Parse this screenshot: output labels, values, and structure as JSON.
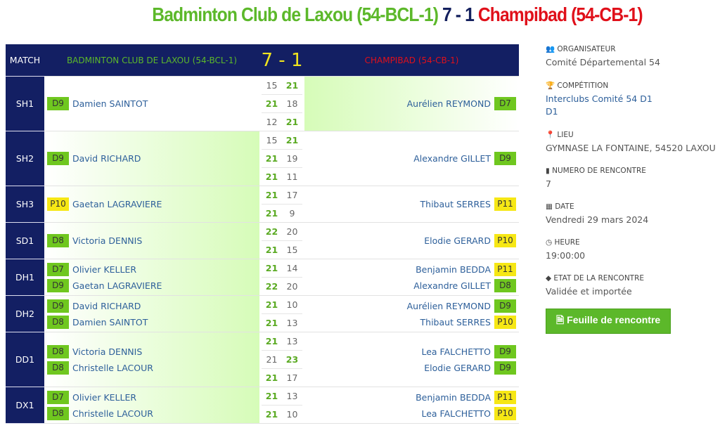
{
  "title": {
    "home": "Badminton Club de Laxou (54-BCL-1)",
    "score": "7 - 1",
    "away": "Champibad (54-CB-1)"
  },
  "table": {
    "match_header": "MATCH",
    "home_header": "BADMINTON CLUB DE LAXOU (54-BCL-1)",
    "score_header": "7 - 1",
    "away_header": "CHAMPIBAD (54-CB-1)",
    "rows": [
      {
        "match": "SH1",
        "winner": "away",
        "home": [
          {
            "rank": "D9",
            "name": "Damien SAINTOT"
          }
        ],
        "away": [
          {
            "rank": "D7",
            "name": "Aurélien REYMOND"
          }
        ],
        "sets": [
          [
            15,
            21
          ],
          [
            21,
            18
          ],
          [
            12,
            21
          ]
        ]
      },
      {
        "match": "SH2",
        "winner": "home",
        "home": [
          {
            "rank": "D9",
            "name": "David RICHARD"
          }
        ],
        "away": [
          {
            "rank": "D9",
            "name": "Alexandre GILLET"
          }
        ],
        "sets": [
          [
            15,
            21
          ],
          [
            21,
            19
          ],
          [
            21,
            11
          ]
        ]
      },
      {
        "match": "SH3",
        "winner": "home",
        "home": [
          {
            "rank": "P10",
            "name": "Gaetan LAGRAVIERE"
          }
        ],
        "away": [
          {
            "rank": "P11",
            "name": "Thibaut SERRES"
          }
        ],
        "sets": [
          [
            21,
            17
          ],
          [
            21,
            9
          ]
        ]
      },
      {
        "match": "SD1",
        "winner": "home",
        "home": [
          {
            "rank": "D8",
            "name": "Victoria DENNIS"
          }
        ],
        "away": [
          {
            "rank": "P10",
            "name": "Elodie GERARD"
          }
        ],
        "sets": [
          [
            22,
            20
          ],
          [
            21,
            15
          ]
        ]
      },
      {
        "match": "DH1",
        "winner": "home",
        "home": [
          {
            "rank": "D7",
            "name": "Olivier KELLER"
          },
          {
            "rank": "D9",
            "name": "Gaetan LAGRAVIERE"
          }
        ],
        "away": [
          {
            "rank": "P11",
            "name": "Benjamin BEDDA"
          },
          {
            "rank": "D8",
            "name": "Alexandre GILLET"
          }
        ],
        "sets": [
          [
            21,
            14
          ],
          [
            22,
            20
          ]
        ]
      },
      {
        "match": "DH2",
        "winner": "home",
        "home": [
          {
            "rank": "D9",
            "name": "David RICHARD"
          },
          {
            "rank": "D8",
            "name": "Damien SAINTOT"
          }
        ],
        "away": [
          {
            "rank": "D9",
            "name": "Aurélien REYMOND"
          },
          {
            "rank": "P10",
            "name": "Thibaut SERRES"
          }
        ],
        "sets": [
          [
            21,
            10
          ],
          [
            21,
            13
          ]
        ]
      },
      {
        "match": "DD1",
        "winner": "home",
        "home": [
          {
            "rank": "D8",
            "name": "Victoria DENNIS"
          },
          {
            "rank": "D8",
            "name": "Christelle LACOUR"
          }
        ],
        "away": [
          {
            "rank": "D9",
            "name": "Lea FALCHETTO"
          },
          {
            "rank": "D9",
            "name": "Elodie GERARD"
          }
        ],
        "sets": [
          [
            21,
            13
          ],
          [
            21,
            23
          ],
          [
            21,
            17
          ]
        ]
      },
      {
        "match": "DX1",
        "winner": "home",
        "home": [
          {
            "rank": "D7",
            "name": "Olivier KELLER"
          },
          {
            "rank": "D8",
            "name": "Christelle LACOUR"
          }
        ],
        "away": [
          {
            "rank": "P11",
            "name": "Benjamin BEDDA"
          },
          {
            "rank": "P10",
            "name": "Lea FALCHETTO"
          }
        ],
        "sets": [
          [
            21,
            13
          ],
          [
            21,
            10
          ]
        ]
      }
    ]
  },
  "side": {
    "organisateur": {
      "label": "ORGANISATEUR",
      "value": "Comité Départemental 54",
      "icon": "users-icon"
    },
    "competition": {
      "label": "COMPÉTITION",
      "value": "Interclubs Comité 54 D1",
      "value2": "D1",
      "icon": "trophy-icon"
    },
    "lieu": {
      "label": "LIEU",
      "value": "GYMNASE LA FONTAINE, 54520 LAXOU",
      "icon": "map-marker-icon"
    },
    "numero": {
      "label": "NUMERO DE RENCONTRE",
      "value": "7",
      "icon": "bookmark-icon"
    },
    "date": {
      "label": "DATE",
      "value": "Vendredi 29 mars 2024",
      "icon": "calendar-icon"
    },
    "heure": {
      "label": "HEURE",
      "value": "19:00:00",
      "icon": "clock-icon"
    },
    "etat": {
      "label": "ETAT DE LA RENCONTRE",
      "value": "Validée et importée",
      "icon": "tag-icon"
    },
    "button": "Feuille de rencontre"
  },
  "colors": {
    "home": "#5cb82a",
    "away": "#e0101a",
    "header": "#131f63",
    "badge_D": "#6fc71f",
    "badge_P": "#f6e715"
  }
}
